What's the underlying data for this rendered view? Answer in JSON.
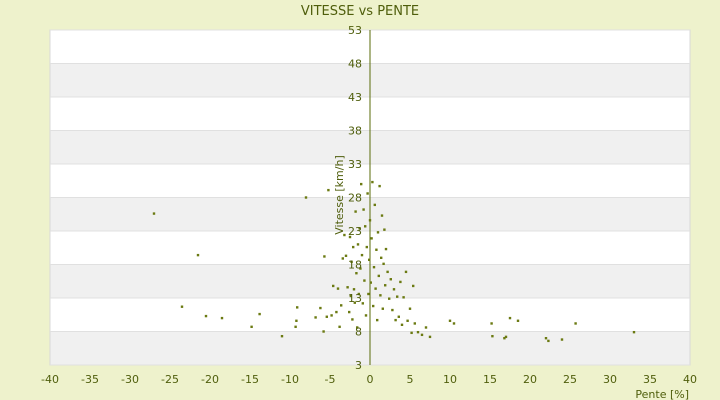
{
  "chart_data": {
    "type": "scatter",
    "title": "VITESSE vs PENTE",
    "xlabel": "Pente [%]",
    "ylabel": "Vitesse [km/h]",
    "xlim": [
      -40,
      40
    ],
    "ylim": [
      3,
      53
    ],
    "x_ticks": [
      -40,
      -35,
      -30,
      -25,
      -20,
      -15,
      -10,
      -5,
      0,
      5,
      10,
      15,
      20,
      25,
      30,
      35,
      40
    ],
    "y_ticks": [
      3,
      8,
      13,
      18,
      23,
      28,
      33,
      38,
      43,
      48,
      53
    ],
    "grid": true,
    "band_fill": "#f0f0f0",
    "plot_fill": "#ffffff",
    "grid_color": "#e0e0e0",
    "axis_color": "#5a6b0a",
    "point_color": "#6b7a12",
    "series": [
      {
        "points": [
          [
            -27,
            25.6
          ],
          [
            -23.5,
            11.7
          ],
          [
            -21.5,
            19.4
          ],
          [
            -20.5,
            10.3
          ],
          [
            -18.5,
            10.0
          ],
          [
            -14.8,
            8.7
          ],
          [
            -13.8,
            10.6
          ],
          [
            -11,
            7.3
          ],
          [
            -9.3,
            8.7
          ],
          [
            -9.2,
            9.6
          ],
          [
            -9.1,
            11.6
          ],
          [
            -8,
            28
          ],
          [
            -6.8,
            10.1
          ],
          [
            -6.2,
            11.5
          ],
          [
            -5.8,
            8.0
          ],
          [
            -5.7,
            19.2
          ],
          [
            -5.4,
            10.2
          ],
          [
            -5.2,
            29.1
          ],
          [
            -4.8,
            10.4
          ],
          [
            -4.6,
            14.8
          ],
          [
            -4.2,
            10.9
          ],
          [
            -4.0,
            14.4
          ],
          [
            -3.8,
            8.7
          ],
          [
            -3.6,
            11.9
          ],
          [
            -3.4,
            18.9
          ],
          [
            -3.2,
            22.4
          ],
          [
            -3.0,
            19.3
          ],
          [
            -2.8,
            14.6
          ],
          [
            -2.6,
            10.9
          ],
          [
            -2.5,
            22.1
          ],
          [
            -2.4,
            13.3
          ],
          [
            -2.3,
            18.4
          ],
          [
            -2.2,
            9.8
          ],
          [
            -2.1,
            20.6
          ],
          [
            -2.0,
            14.3
          ],
          [
            -1.9,
            12.3
          ],
          [
            -1.8,
            25.9
          ],
          [
            -1.7,
            16.7
          ],
          [
            -1.6,
            8.6
          ],
          [
            -1.5,
            21.0
          ],
          [
            -1.4,
            13.6
          ],
          [
            -1.3,
            23.4
          ],
          [
            -1.2,
            17.4
          ],
          [
            -1.1,
            30.0
          ],
          [
            -1.0,
            19.4
          ],
          [
            -0.9,
            12.2
          ],
          [
            -0.8,
            26.2
          ],
          [
            -0.7,
            15.6
          ],
          [
            -0.6,
            23.7
          ],
          [
            -0.5,
            10.4
          ],
          [
            -0.4,
            20.6
          ],
          [
            -0.3,
            28.6
          ],
          [
            -0.2,
            13.6
          ],
          [
            -0.1,
            18.7
          ],
          [
            0.0,
            24.6
          ],
          [
            0.1,
            15.3
          ],
          [
            0.2,
            21.9
          ],
          [
            0.3,
            30.3
          ],
          [
            0.4,
            11.8
          ],
          [
            0.5,
            17.6
          ],
          [
            0.6,
            26.9
          ],
          [
            0.7,
            14.4
          ],
          [
            0.8,
            20.2
          ],
          [
            0.9,
            9.7
          ],
          [
            1.0,
            22.8
          ],
          [
            1.1,
            16.3
          ],
          [
            1.2,
            29.7
          ],
          [
            1.3,
            13.4
          ],
          [
            1.4,
            19.0
          ],
          [
            1.5,
            25.3
          ],
          [
            1.6,
            11.4
          ],
          [
            1.7,
            18.1
          ],
          [
            1.8,
            23.2
          ],
          [
            1.9,
            14.9
          ],
          [
            2.0,
            20.3
          ],
          [
            2.2,
            16.9
          ],
          [
            2.4,
            12.9
          ],
          [
            2.6,
            15.8
          ],
          [
            2.8,
            11.2
          ],
          [
            3.0,
            14.3
          ],
          [
            3.2,
            9.7
          ],
          [
            3.4,
            13.2
          ],
          [
            3.6,
            10.2
          ],
          [
            3.8,
            15.4
          ],
          [
            4.0,
            9.0
          ],
          [
            4.2,
            13.1
          ],
          [
            4.5,
            16.9
          ],
          [
            4.7,
            9.6
          ],
          [
            5.0,
            11.4
          ],
          [
            5.2,
            7.8
          ],
          [
            5.4,
            14.8
          ],
          [
            5.6,
            9.2
          ],
          [
            6.0,
            7.9
          ],
          [
            6.5,
            7.5
          ],
          [
            7.0,
            8.6
          ],
          [
            7.5,
            7.2
          ],
          [
            10,
            9.6
          ],
          [
            10.5,
            9.2
          ],
          [
            15.2,
            9.2
          ],
          [
            15.3,
            7.3
          ],
          [
            16.8,
            7.0
          ],
          [
            17.0,
            7.2
          ],
          [
            17.5,
            10.0
          ],
          [
            18.5,
            9.6
          ],
          [
            22.0,
            7.0
          ],
          [
            22.3,
            6.6
          ],
          [
            24.0,
            6.8
          ],
          [
            25.7,
            9.2
          ],
          [
            33.0,
            7.9
          ]
        ]
      }
    ]
  }
}
